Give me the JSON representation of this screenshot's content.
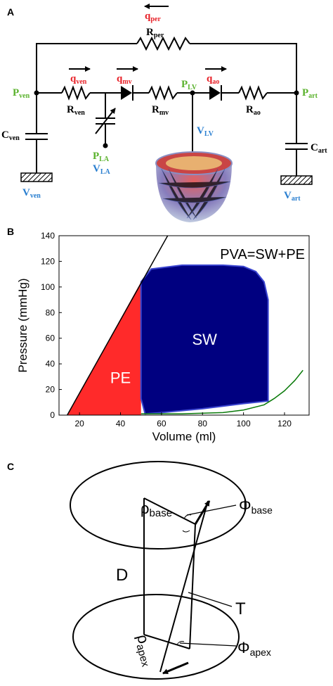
{
  "panels": {
    "a": {
      "label": "A",
      "flows": {
        "q_per": "per",
        "q_ven": "ven",
        "q_mv": "mv",
        "q_ao": "ao"
      },
      "resistors": {
        "r_per": "per",
        "r_ven": "ven",
        "r_mv": "mv",
        "r_ao": "ao"
      },
      "pressures": {
        "p_ven": "ven",
        "p_lv": "LV",
        "p_art": "art",
        "p_la": "LA"
      },
      "capacitors": {
        "c_ven": "ven",
        "c_art": "art"
      },
      "volumes": {
        "v_ven": "ven",
        "v_art": "art",
        "v_la": "LA",
        "v_lv": "LV"
      },
      "symbols": {
        "q": "q",
        "R": "R",
        "P": "P",
        "C": "C",
        "V": "V"
      },
      "colors": {
        "flow": "#e8232a",
        "pressure": "#5ab22c",
        "volume": "#2a7fd0"
      }
    },
    "b": {
      "label": "B",
      "annotation": "PVA=SW+PE",
      "sw_label": "SW",
      "pe_label": "PE",
      "colors": {
        "sw": "#000080",
        "pe": "#ff2a2a",
        "edpvr": "#0a7a0a",
        "espvr": "#000000"
      }
    },
    "c": {
      "label": "C",
      "labels": {
        "D": "D",
        "T": "T",
        "rho": "ρ",
        "phi": "Φ",
        "base": "base",
        "apex": "apex"
      }
    }
  },
  "chart_data": {
    "type": "area",
    "title": "",
    "xlabel": "Volume (ml)",
    "ylabel": "Pressure (mmHg)",
    "xlim": [
      10,
      132
    ],
    "ylim": [
      0,
      140
    ],
    "x_ticks": [
      20,
      40,
      60,
      80,
      100,
      120
    ],
    "y_ticks": [
      0,
      20,
      40,
      60,
      80,
      100,
      120,
      140
    ],
    "grid": false,
    "regions": [
      {
        "label": "SW",
        "x": [
          50,
          50,
          55,
          70,
          90,
          100,
          106,
          110,
          112,
          112,
          100,
          80,
          60,
          52
        ],
        "y": [
          13,
          104,
          114,
          117,
          117,
          116,
          112,
          104,
          90,
          11,
          9,
          5,
          2,
          1
        ]
      },
      {
        "label": "PE",
        "x": [
          14,
          50,
          50,
          14
        ],
        "y": [
          0,
          104,
          0,
          0
        ]
      }
    ],
    "lines": [
      {
        "x": [
          14,
          63
        ],
        "y": [
          0,
          140
        ]
      },
      {
        "x": [
          50,
          70,
          90,
          100,
          110,
          115,
          120,
          125,
          129
        ],
        "y": [
          1,
          1,
          2,
          4,
          8,
          13,
          19,
          27,
          35
        ]
      }
    ]
  }
}
